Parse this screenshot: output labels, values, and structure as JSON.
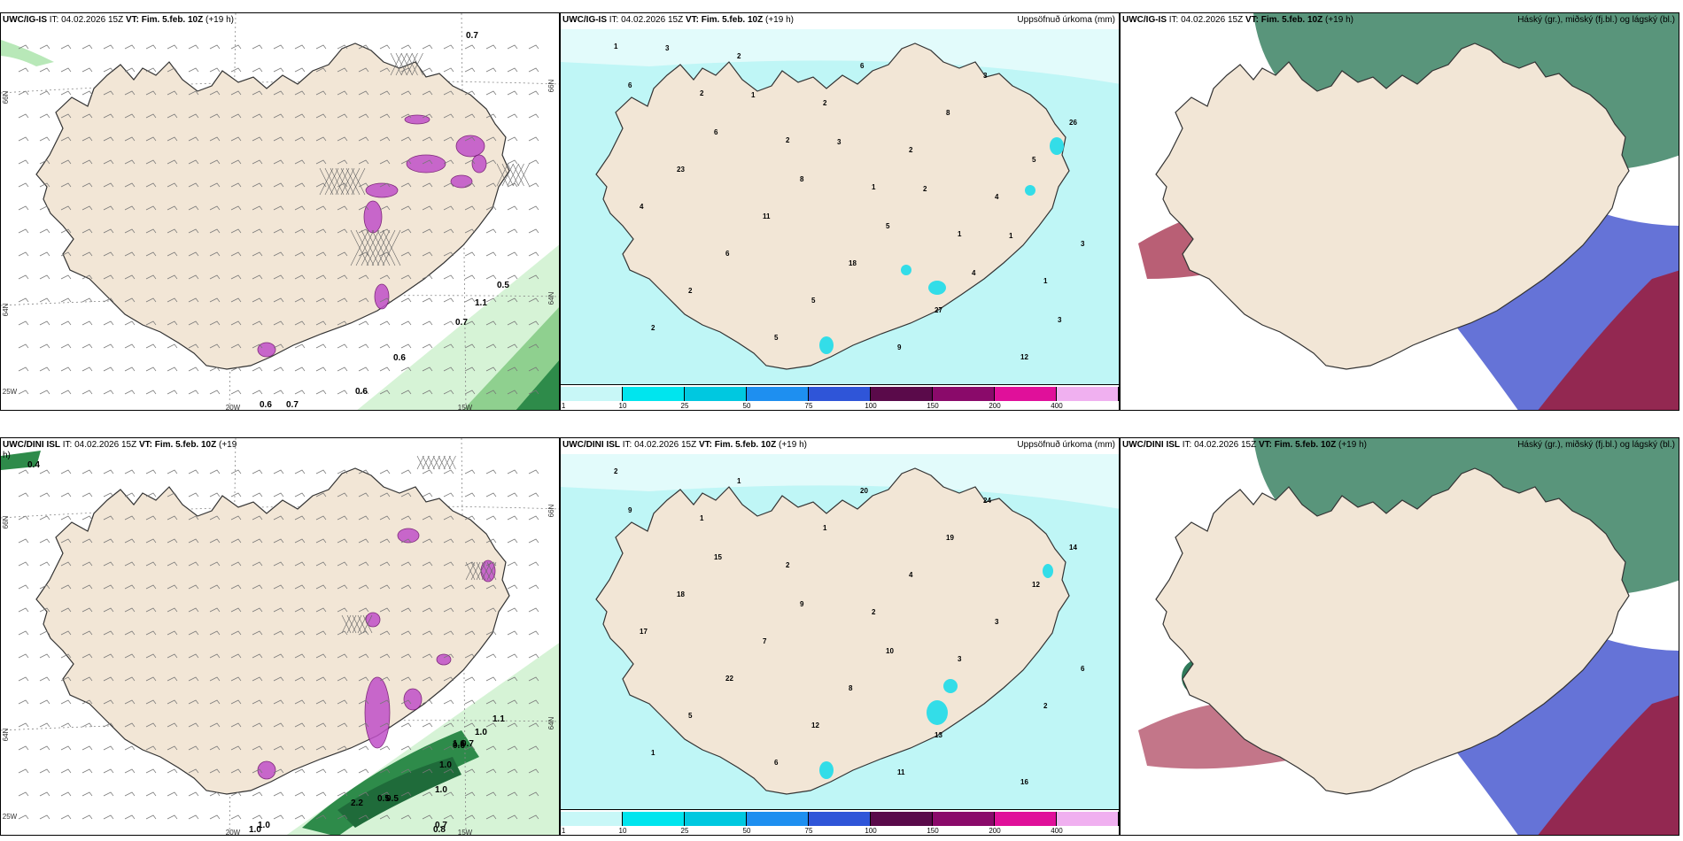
{
  "panels": [
    {
      "id": "p1",
      "model": "UWC/IG-IS",
      "it_label": "IT:",
      "it_value": "04.02.2026 15Z",
      "vt_label": "VT: Fim. 5.feb. 10Z",
      "lead": "(+19 h)",
      "right_title": "",
      "kind": "wind",
      "numbers": [
        "0.7",
        "0.5",
        "1.1",
        "0.7",
        "0.6",
        "0.6",
        "0.7",
        "0.6"
      ],
      "lon_labels": [
        "20W",
        "15W",
        "25W"
      ],
      "lat_labels": [
        "66N",
        "64N",
        "66N",
        "64N"
      ]
    },
    {
      "id": "p2",
      "model": "UWC/IG-IS",
      "it_label": "IT:",
      "it_value": "04.02.2026 15Z",
      "vt_label": "VT: Fim. 5.feb. 10Z",
      "lead": "(+19 h)",
      "right_title": "Uppsöfnuð úrkoma (mm)",
      "kind": "precip",
      "numbers": [
        "1",
        "2",
        "2",
        "1",
        "1",
        "1",
        "2",
        "2",
        "2",
        "2",
        "4",
        "3",
        "2",
        "5",
        "6",
        "8",
        "5",
        "4",
        "6",
        "5",
        "9",
        "3",
        "26",
        "23",
        "11",
        "18",
        "27",
        "12",
        "6",
        "6",
        "8",
        "5",
        "4",
        "3",
        "3",
        "1",
        "3",
        "2",
        "1"
      ]
    },
    {
      "id": "p3",
      "model": "UWC/IG-IS",
      "it_label": "IT:",
      "it_value": "04.02.2026 15Z",
      "vt_label": "VT: Fim. 5.feb. 10Z",
      "lead": "(+19 h)",
      "right_title": "Háský (gr.), miðský (fj.bl.) og lágský (bl.)",
      "kind": "cloud"
    },
    {
      "id": "p4",
      "model": "UWC/DINI ISL",
      "it_label": "IT:",
      "it_value": "04.02.2026 15Z",
      "vt_label": "VT: Fim. 5.feb. 10Z",
      "lead": "(+19",
      "lead2": "h)",
      "right_title": "",
      "kind": "wind",
      "numbers": [
        "0.4",
        "1.1",
        "1.0",
        "1.6",
        "0.6",
        "0.7",
        "1.0",
        "1.0",
        "2.2",
        "0.5",
        "0.5",
        "1.0",
        "0.7",
        "0.8",
        "1.0"
      ],
      "lon_labels": [
        "20W",
        "15W",
        "25W"
      ],
      "lat_labels": [
        "66N",
        "64N",
        "66N",
        "64N"
      ]
    },
    {
      "id": "p5",
      "model": "UWC/DINI ISL",
      "it_label": "IT:",
      "it_value": "04.02.2026 15Z",
      "vt_label": "VT: Fim. 5.feb. 10Z",
      "lead": "(+19 h)",
      "right_title": "Uppsöfnuð úrkoma (mm)",
      "kind": "precip",
      "numbers": [
        "2",
        "1",
        "2",
        "2",
        "3",
        "2",
        "1",
        "1",
        "1",
        "4",
        "3",
        "6",
        "5",
        "6",
        "20",
        "19",
        "12",
        "17",
        "22",
        "12",
        "11",
        "24",
        "14",
        "18",
        "7",
        "8",
        "13",
        "16",
        "9",
        "15",
        "9",
        "10"
      ]
    },
    {
      "id": "p6",
      "model": "UWC/DINI ISL",
      "it_label": "IT:",
      "it_value": "04.02.2026 15Z",
      "vt_label": "VT: Fim. 5.feb. 10Z",
      "lead": "(+19 h)",
      "right_title": "Háský (gr.), miðský (fj.bl.) og lágský (bl.)",
      "kind": "cloud"
    }
  ],
  "colorbar": {
    "labels": [
      "1",
      "10",
      "25",
      "50",
      "75",
      "100",
      "150",
      "200",
      "400"
    ],
    "colors": [
      "#c8f7f7",
      "#00e5ee",
      "#00c8e0",
      "#1e8ff0",
      "#2f55d8",
      "#5a0a4a",
      "#8a0a6a",
      "#e0109a",
      "#f0b0f0"
    ]
  },
  "colors": {
    "land": "#f2e6d6",
    "precip_light": "#bff6f6",
    "precip_mid": "#33dde8",
    "wind_green_light": "#d6f3d6",
    "wind_green_dark": "#2e8b4a",
    "magenta": "#c050c8",
    "cloud_blue": "#4a5ad0",
    "cloud_red": "#9b1b3a",
    "cloud_green": "#2f7a5a"
  }
}
